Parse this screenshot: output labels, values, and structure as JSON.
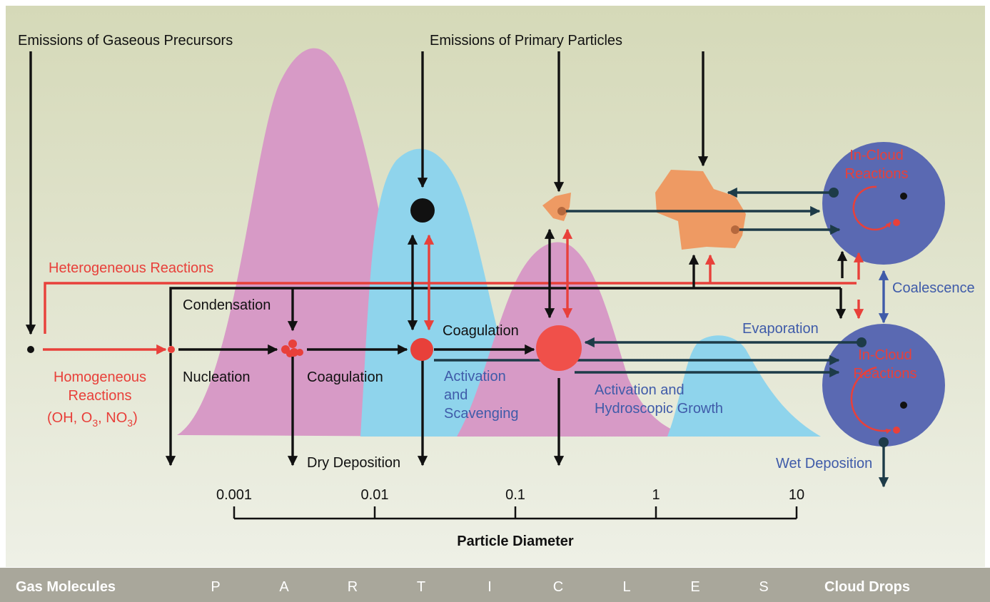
{
  "labels": {
    "emissions_gaseous": "Emissions of Gaseous Precursors",
    "emissions_primary": "Emissions of Primary Particles",
    "heterogeneous": "Heterogeneous Reactions",
    "condensation": "Condensation",
    "nucleation": "Nucleation",
    "coagulation_left": "Coagulation",
    "coagulation_mid": "Coagulation",
    "homogeneous_1": "Homogeneous",
    "homogeneous_2": "Reactions",
    "homogeneous_3": "(OH, O",
    "homogeneous_sub1": "3",
    "homogeneous_mid": ", NO",
    "homogeneous_sub2": "3",
    "homogeneous_end": ")",
    "activation_1": "Activation",
    "activation_2": "and",
    "activation_3": "Scavenging",
    "activation_growth_1": "Activation and",
    "activation_growth_2": "Hydroscopic Growth",
    "dry_deposition": "Dry Deposition",
    "evaporation": "Evaporation",
    "coalescence": "Coalescence",
    "wet_deposition": "Wet Deposition",
    "in_cloud_1": "In-Cloud",
    "in_cloud_2": "Reactions",
    "in_cloud_lower_1": "In-Cloud",
    "in_cloud_lower_2": "Reactions"
  },
  "axis": {
    "title": "Particle Diameter",
    "ticks": [
      "0.001",
      "0.01",
      "0.1",
      "1",
      "10"
    ]
  },
  "footer": {
    "left": "Gas Molecules",
    "letters": [
      "P",
      "A",
      "R",
      "T",
      "I",
      "C",
      "L",
      "E",
      "S"
    ],
    "right": "Cloud Drops"
  },
  "colors": {
    "background_top": "#d5d9b8",
    "background_bottom": "#eef0e6",
    "footer_bar": "#a9a79b",
    "magenta_mode": "#d79ac6",
    "cyan_mode": "#8fd4ec",
    "cloud_drop": "#5a69b2",
    "primary_particle": "#ee9a63",
    "red": "#e8403a",
    "dark_teal": "#1d3b48",
    "blue_text": "#3f5ba9"
  }
}
